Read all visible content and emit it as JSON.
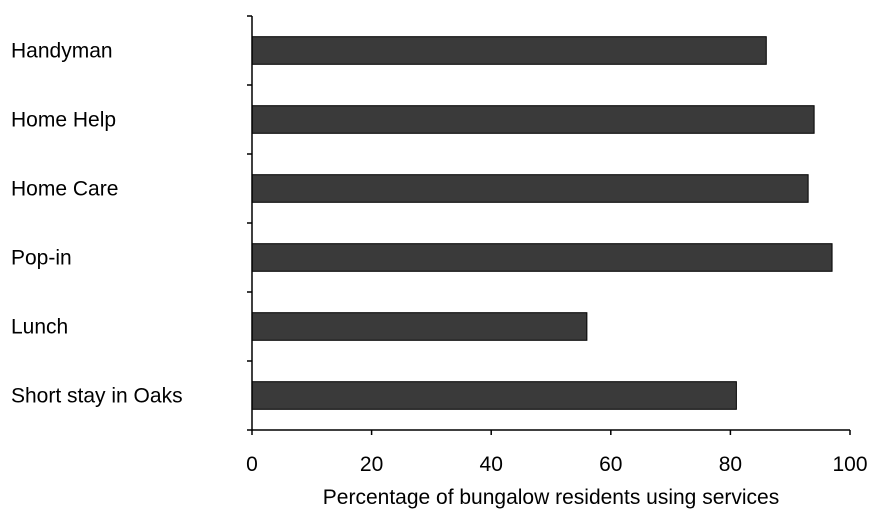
{
  "chart_data": {
    "type": "bar",
    "orientation": "horizontal",
    "categories": [
      "Handyman",
      "Home Help",
      "Home Care",
      "Pop-in",
      "Lunch",
      "Short stay in Oaks"
    ],
    "values": [
      86,
      94,
      93,
      97,
      56,
      81
    ],
    "xlabel": "Percentage of bungalow residents using services",
    "ylabel": "",
    "title": "",
    "xlim": [
      0,
      100
    ],
    "xticks": [
      0,
      20,
      40,
      60,
      80,
      100
    ],
    "grid": false,
    "legend": "none",
    "bar_color": "#3a3a3a"
  }
}
